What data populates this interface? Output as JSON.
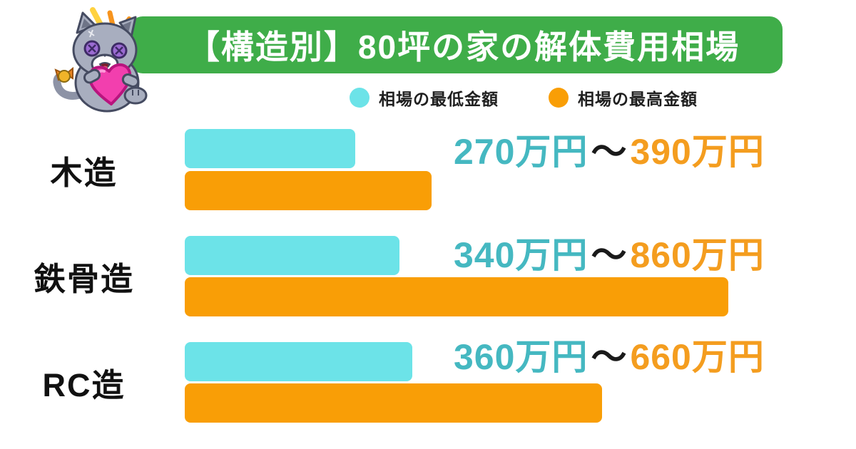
{
  "page": {
    "background": "#ffffff"
  },
  "header": {
    "title": "【構造別】80坪の家の解体費用相場",
    "banner_color": "#3FAD49",
    "title_color": "#ffffff",
    "mascot": "plush-cat-holding-heart"
  },
  "legend": {
    "items": [
      {
        "label": "相場の最低金額",
        "color": "#6CE3E8"
      },
      {
        "label": "相場の最高金額",
        "color": "#F99E06"
      }
    ]
  },
  "chart_data": {
    "type": "bar",
    "orientation": "horizontal",
    "title": "【構造別】80坪の家の解体費用相場",
    "unit": "万円",
    "categories": [
      "木造",
      "鉄骨造",
      "RC造"
    ],
    "series": [
      {
        "name": "相場の最低金額",
        "color": "#6CE3E8",
        "values": [
          270,
          340,
          360
        ]
      },
      {
        "name": "相場の最高金額",
        "color": "#F99E06",
        "values": [
          390,
          860,
          660
        ]
      }
    ],
    "value_labels": [
      {
        "min": "270万円",
        "separator": "～",
        "max": "390万円"
      },
      {
        "min": "340万円",
        "separator": "～",
        "max": "860万円"
      },
      {
        "min": "360万円",
        "separator": "～",
        "max": "660万円"
      }
    ],
    "value_label_colors": {
      "min": "#45B8C1",
      "separator": "#1A1A1A",
      "max": "#F49D1F"
    },
    "xlim": [
      0,
      880
    ],
    "grid": false,
    "legend_position": "top",
    "axis_labels_hidden": true
  }
}
